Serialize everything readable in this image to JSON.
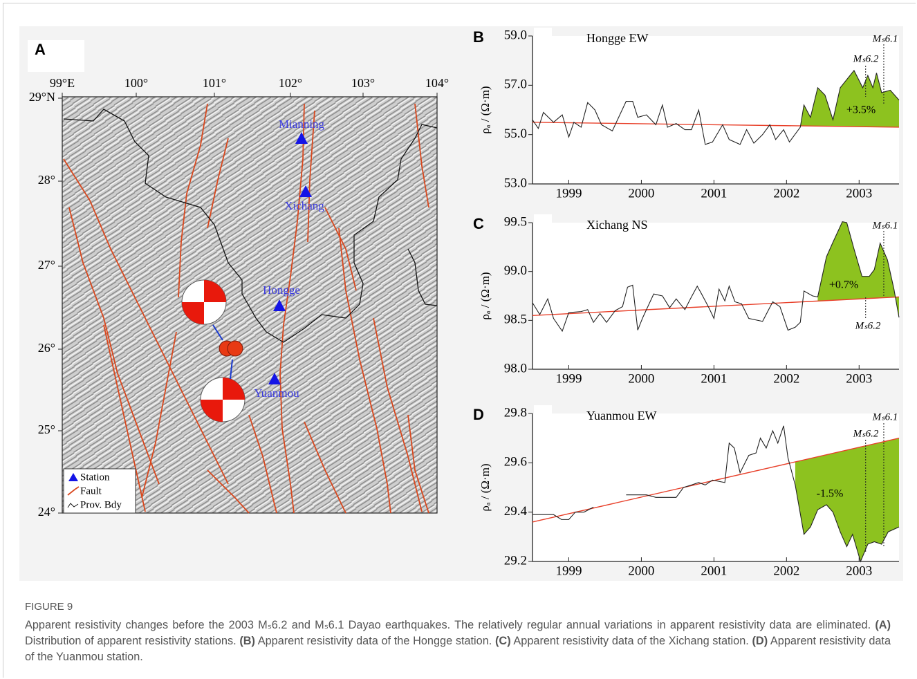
{
  "map": {
    "panel": "A",
    "x_labels": [
      "99°E",
      "100°",
      "101°",
      "102°",
      "103°",
      "104°"
    ],
    "y_labels": [
      "29°N",
      "28°",
      "27°",
      "26°",
      "25°",
      "24°"
    ],
    "stations": [
      "Mianning",
      "Xichang",
      "Hongge",
      "Yuanmou"
    ],
    "legend": [
      "Station",
      "Fault",
      "Prov. Bdy"
    ]
  },
  "chart_data": [
    {
      "type": "line",
      "panel": "B",
      "title": "Hongge EW",
      "y_label": "ρₐ / (Ω·m)",
      "x": [
        1998.5,
        1998.58,
        1998.65,
        1998.79,
        1998.91,
        1999.0,
        1999.07,
        1999.17,
        1999.26,
        1999.36,
        1999.45,
        1999.6,
        1999.79,
        1999.88,
        1999.95,
        2000.07,
        2000.2,
        2000.29,
        2000.36,
        2000.48,
        2000.6,
        2000.69,
        2000.79,
        2000.88,
        2000.98,
        2001.12,
        2001.21,
        2001.36,
        2001.45,
        2001.55,
        2001.67,
        2001.77,
        2001.85,
        2001.96,
        2002.04,
        2002.19,
        2002.24,
        2002.33,
        2002.43,
        2002.53,
        2002.64,
        2002.74,
        2002.93,
        2003.05,
        2003.12,
        2003.19,
        2003.24,
        2003.31,
        2003.43,
        2003.55
      ],
      "series": [
        {
          "color": "#222222",
          "values": [
            55.6,
            55.25,
            55.9,
            55.5,
            55.8,
            54.9,
            55.5,
            55.3,
            56.3,
            56.0,
            55.4,
            55.15,
            56.35,
            56.35,
            55.7,
            55.8,
            55.4,
            56.2,
            55.3,
            55.45,
            55.2,
            55.2,
            56.0,
            54.6,
            54.7,
            55.4,
            54.8,
            54.6,
            55.2,
            54.65,
            55.0,
            55.4,
            54.8,
            55.2,
            54.7,
            55.3,
            56.2,
            55.7,
            56.9,
            56.6,
            55.6,
            56.9,
            57.6,
            56.9,
            57.4,
            56.9,
            57.5,
            56.7,
            56.8,
            56.4
          ]
        }
      ],
      "trend": {
        "color": "#e8402a",
        "x": [
          1998.5,
          2003.55
        ],
        "values": [
          55.5,
          55.3
        ]
      },
      "shade": {
        "color": "#8dc21f",
        "from_x": 2002.19
      },
      "annotation": "+3.5%",
      "events": [
        {
          "label": "Mₛ6.2",
          "x": 2003.09
        },
        {
          "label": "Mₛ6.1",
          "x": 2003.34
        }
      ],
      "xlim": [
        1998.5,
        2003.55
      ],
      "xticks": [
        1999,
        2000,
        2001,
        2002,
        2003
      ],
      "ylim": [
        53,
        59
      ],
      "yticks": [
        {
          "value": 53,
          "label": "53.0"
        },
        {
          "value": 55,
          "label": "55.0"
        },
        {
          "value": 57,
          "label": "57.0"
        },
        {
          "value": 59,
          "label": "59.0"
        }
      ]
    },
    {
      "type": "line",
      "panel": "C",
      "title": "Xichang NS",
      "y_label": "ρₐ / (Ω·m)",
      "x": [
        1998.5,
        1998.6,
        1998.71,
        1998.79,
        1998.91,
        1999.0,
        1999.17,
        1999.26,
        1999.34,
        1999.43,
        1999.52,
        1999.64,
        1999.74,
        1999.81,
        1999.88,
        1999.95,
        2000.02,
        2000.17,
        2000.29,
        2000.39,
        2000.48,
        2000.6,
        2000.69,
        2000.77,
        2000.83,
        2000.93,
        2001.0,
        2001.07,
        2001.15,
        2001.21,
        2001.29,
        2001.38,
        2001.48,
        2001.67,
        2001.81,
        2001.91,
        2002.02,
        2002.12,
        2002.19,
        2002.24,
        2002.36,
        2002.43,
        2002.55,
        2002.64,
        2002.77,
        2002.83,
        2002.93,
        2003.04,
        2003.14,
        2003.21,
        2003.29,
        2003.39,
        2003.48,
        2003.55
      ],
      "series": [
        {
          "color": "#222222",
          "values": [
            98.68,
            98.56,
            98.72,
            98.52,
            98.39,
            98.58,
            98.59,
            98.61,
            98.48,
            98.57,
            98.48,
            98.6,
            98.64,
            98.84,
            98.86,
            98.4,
            98.53,
            98.77,
            98.75,
            98.63,
            98.72,
            98.61,
            98.74,
            98.85,
            98.77,
            98.63,
            98.52,
            98.82,
            98.7,
            98.85,
            98.69,
            98.67,
            98.52,
            98.49,
            98.69,
            98.64,
            98.4,
            98.43,
            98.48,
            98.8,
            98.75,
            98.74,
            99.15,
            99.3,
            99.51,
            99.5,
            99.23,
            98.95,
            98.95,
            99.02,
            99.29,
            99.12,
            98.82,
            98.53
          ]
        }
      ],
      "trend": {
        "color": "#e8402a",
        "x": [
          1998.5,
          2003.55
        ],
        "values": [
          98.55,
          98.74
        ]
      },
      "shade": {
        "color": "#8dc21f",
        "from_x": 2002.43
      },
      "annotation": "+0.7%",
      "events": [
        {
          "label": "Mₛ6.2",
          "x": 2003.09
        },
        {
          "label": "Mₛ6.1",
          "x": 2003.34
        }
      ],
      "xlim": [
        1998.5,
        2003.55
      ],
      "xticks": [
        1999,
        2000,
        2001,
        2002,
        2003
      ],
      "ylim": [
        98,
        99.5
      ],
      "yticks": [
        {
          "value": 98,
          "label": "98.0"
        },
        98.5,
        {
          "value": 99,
          "label": "99.0"
        },
        99.5
      ]
    },
    {
      "type": "line",
      "panel": "D",
      "title": "Yuanmou EW",
      "y_label": "ρₐ / (Ω·m)",
      "x": [
        1998.5,
        1998.69,
        1998.79,
        1998.9,
        1999.0,
        1999.09,
        1999.21,
        1999.34,
        1999.6,
        1999.79,
        1999.88,
        2000.07,
        2000.2,
        2000.31,
        2000.48,
        2000.58,
        2000.69,
        2000.79,
        2000.88,
        2000.98,
        2001.15,
        2001.21,
        2001.28,
        2001.36,
        2001.48,
        2001.58,
        2001.64,
        2001.72,
        2001.81,
        2001.88,
        2001.96,
        2002.02,
        2002.12,
        2002.24,
        2002.33,
        2002.43,
        2002.55,
        2002.64,
        2002.74,
        2002.83,
        2002.91,
        2003.02,
        2003.12,
        2003.21,
        2003.31,
        2003.4,
        2003.55
      ],
      "series": [
        {
          "color": "#222222",
          "values": [
            29.39,
            29.39,
            29.39,
            29.37,
            29.37,
            29.4,
            29.4,
            29.42,
            null,
            29.47,
            29.47,
            29.47,
            29.46,
            29.46,
            29.46,
            29.5,
            29.51,
            29.52,
            29.51,
            29.53,
            29.52,
            29.68,
            29.66,
            29.56,
            29.63,
            29.64,
            29.7,
            29.66,
            29.73,
            29.68,
            29.75,
            29.62,
            29.51,
            29.31,
            29.34,
            29.41,
            29.43,
            29.4,
            29.32,
            29.26,
            29.31,
            29.2,
            29.27,
            29.28,
            29.27,
            29.32,
            29.34
          ]
        }
      ],
      "trend": {
        "color": "#e8402a",
        "x": [
          1998.5,
          2003.55
        ],
        "values": [
          29.36,
          29.7
        ]
      },
      "shade": {
        "color": "#8dc21f",
        "from_x": 2002.12
      },
      "annotation": "-1.5%",
      "events": [
        {
          "label": "Mₛ6.2",
          "x": 2003.09
        },
        {
          "label": "Mₛ6.1",
          "x": 2003.34
        }
      ],
      "xlim": [
        1998.5,
        2003.55
      ],
      "xticks": [
        1999,
        2000,
        2001,
        2002,
        2003
      ],
      "ylim": [
        29.2,
        29.8
      ],
      "yticks": [
        29.2,
        29.4,
        29.6,
        29.8
      ]
    }
  ],
  "caption": {
    "label": "FIGURE 9",
    "intro": "Apparent resistivity changes before the 2003 Mₛ6.2 and Mₛ6.1 Dayao earthquakes. The relatively regular annual variations in apparent resistivity data are eliminated.",
    "items": [
      {
        "tag": "(A)",
        "text": "Distribution of apparent resistivity stations."
      },
      {
        "tag": "(B)",
        "text": "Apparent resistivity data of the Hongge station."
      },
      {
        "tag": "(C)",
        "text": "Apparent resistivity data of the Xichang station."
      },
      {
        "tag": "(D)",
        "text": "Apparent resistivity data of the Yuanmou station."
      }
    ]
  }
}
